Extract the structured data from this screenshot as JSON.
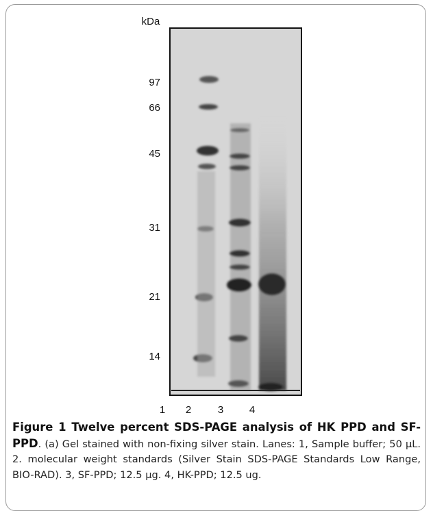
{
  "figure": {
    "axis_unit": "kDa",
    "markers": [
      "97",
      "66",
      "45",
      "31",
      "21",
      "14"
    ],
    "lanes": [
      "1",
      "2",
      "3",
      "4"
    ],
    "caption": {
      "title": "Figure 1 Twelve percent SDS-PAGE analysis of HK PPD and SF-PPD",
      "text": ". (a) Gel stained with non-fixing silver stain. Lanes: 1, Sample buffer; 50 μL. 2. molecular weight standards (Silver Stain SDS-PAGE Standards Low Range, BIO-RAD). 3, SF-PPD; 12.5 μg. 4, HK-PPD; 12.5 ug."
    }
  }
}
